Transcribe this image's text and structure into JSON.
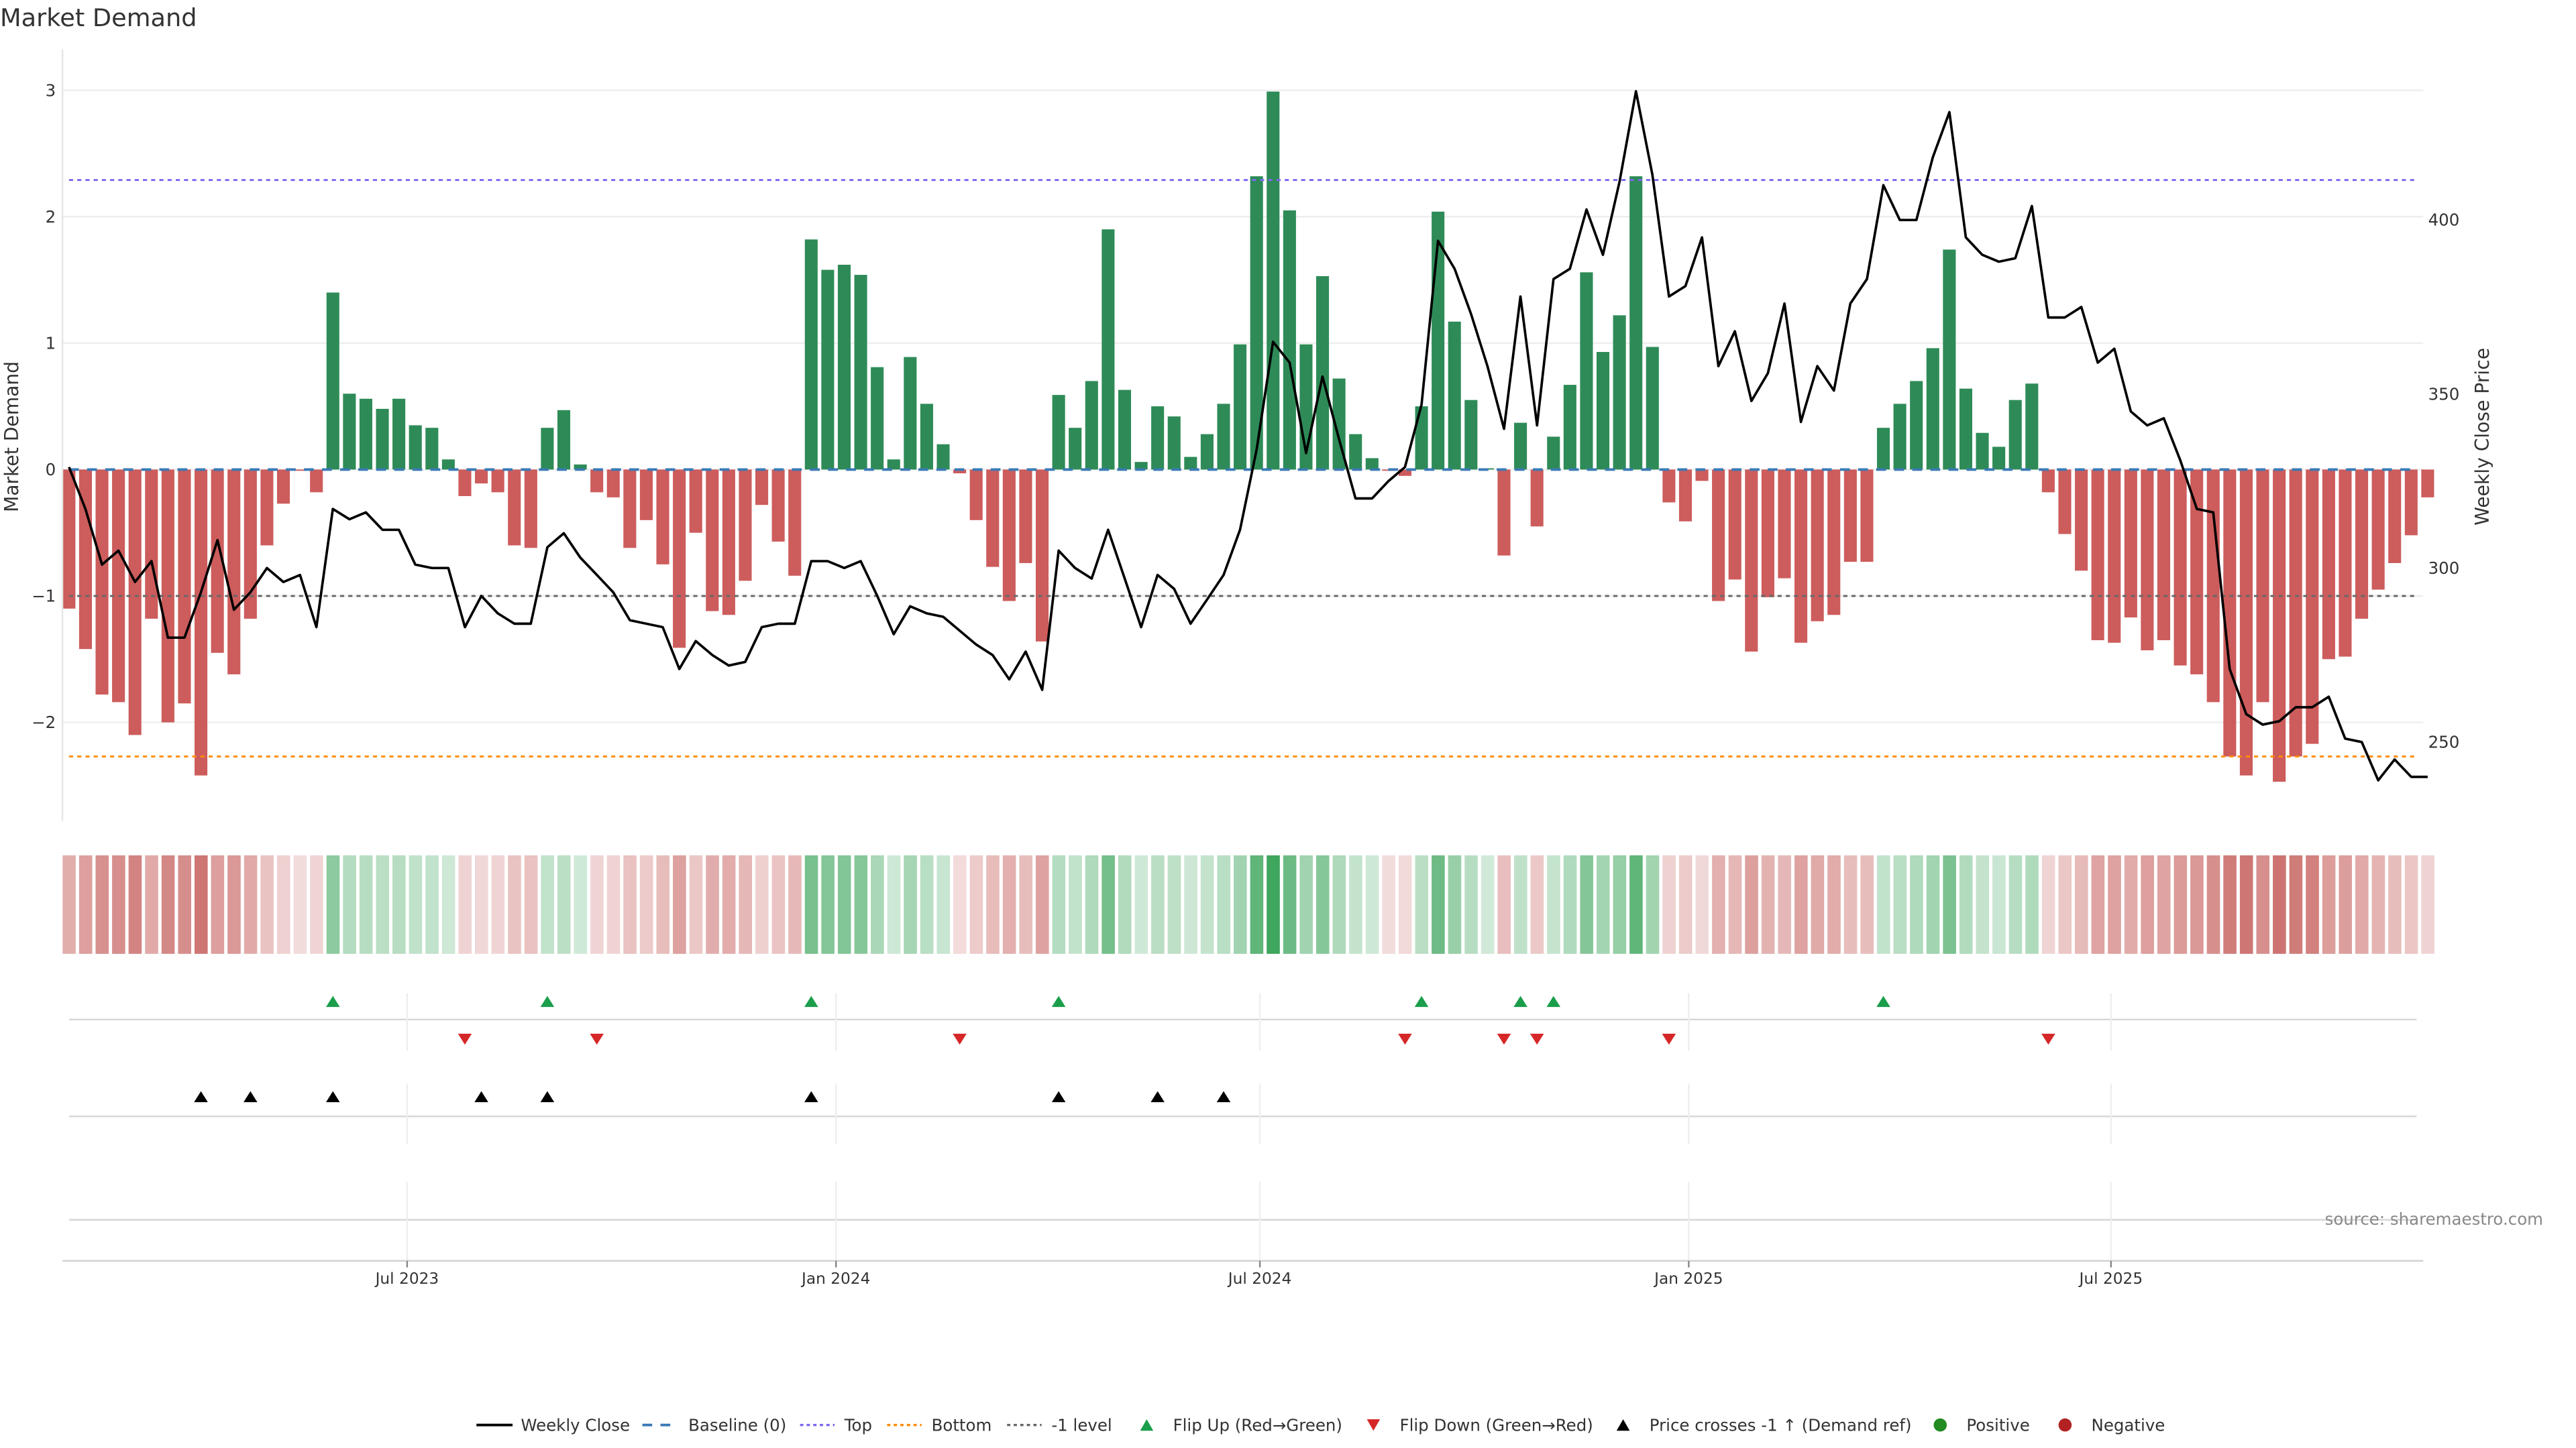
{
  "chart_data": {
    "type": "bar",
    "title": "Market Demand",
    "ylabel": "Market Demand",
    "y2label": "Weekly Close Price",
    "ylim": [
      -2.75,
      3.3
    ],
    "y2lim": [
      226,
      470
    ],
    "yticks": [
      3,
      2,
      1,
      0,
      -1,
      -2
    ],
    "ytick_labels": [
      "3",
      "2",
      "1",
      "0",
      "−1",
      "−2"
    ],
    "y2ticks": [
      400,
      350,
      300,
      250
    ],
    "y2tick_labels": [
      "400",
      "350",
      "300",
      "250"
    ],
    "x_unit": "week index",
    "xticks": [
      {
        "pos": 20.5,
        "label": "Jul 2023"
      },
      {
        "pos": 46.5,
        "label": "Jan 2024"
      },
      {
        "pos": 72.2,
        "label": "Jul 2024"
      },
      {
        "pos": 98.2,
        "label": "Jan 2025"
      },
      {
        "pos": 123.8,
        "label": "Jul 2025"
      }
    ],
    "grid": true,
    "legend_position": "bottom-center",
    "reference_lines": {
      "top": 2.29,
      "bottom": -2.27,
      "minus_one": -1.0,
      "baseline": 0
    },
    "demand": [
      -1.1,
      -1.42,
      -1.78,
      -1.84,
      -2.1,
      -1.18,
      -2.0,
      -1.85,
      -2.42,
      -1.45,
      -1.62,
      -1.18,
      -0.6,
      -0.27,
      -0.01,
      -0.18,
      1.4,
      0.6,
      0.56,
      0.48,
      0.56,
      0.35,
      0.33,
      0.08,
      -0.21,
      -0.11,
      -0.18,
      -0.6,
      -0.62,
      0.33,
      0.47,
      0.04,
      -0.18,
      -0.22,
      -0.62,
      -0.4,
      -0.75,
      -1.41,
      -0.5,
      -1.12,
      -1.15,
      -0.88,
      -0.28,
      -0.57,
      -0.84,
      1.82,
      1.58,
      1.62,
      1.54,
      0.81,
      0.08,
      0.89,
      0.52,
      0.2,
      -0.03,
      -0.4,
      -0.77,
      -1.04,
      -0.74,
      -1.36,
      0.59,
      0.33,
      0.7,
      1.9,
      0.63,
      0.06,
      0.5,
      0.42,
      0.1,
      0.28,
      0.52,
      0.99,
      2.32,
      2.99,
      2.05,
      0.99,
      1.53,
      0.72,
      0.28,
      0.09,
      -0.01,
      -0.05,
      0.5,
      2.04,
      1.17,
      0.55,
      0.01,
      -0.68,
      0.37,
      -0.45,
      0.26,
      0.67,
      1.56,
      0.93,
      1.22,
      2.32,
      0.97,
      -0.26,
      -0.41,
      -0.09,
      -1.04,
      -0.87,
      -1.44,
      -1.01,
      -0.86,
      -1.37,
      -1.2,
      -1.15,
      -0.73,
      -0.73,
      0.33,
      0.52,
      0.7,
      0.96,
      1.74,
      0.64,
      0.29,
      0.18,
      0.55,
      0.68,
      -0.18,
      -0.51,
      -0.8,
      -1.35,
      -1.37,
      -1.17,
      -1.43,
      -1.35,
      -1.55,
      -1.62,
      -1.84,
      -2.27,
      -2.42,
      -1.84,
      -2.47,
      -2.27,
      -2.17,
      -1.5,
      -1.48,
      -1.18,
      -0.95,
      -0.74,
      -0.52,
      -0.22
    ],
    "weekly_close": [
      329,
      317,
      301,
      305,
      296,
      302,
      280,
      280,
      293,
      308,
      288,
      293,
      300,
      296,
      298,
      283,
      317,
      314,
      316,
      311,
      311,
      301,
      300,
      300,
      283,
      292,
      287,
      284,
      284,
      306,
      310,
      303,
      298,
      293,
      285,
      284,
      283,
      271,
      279,
      275,
      272,
      273,
      283,
      284,
      284,
      302,
      302,
      300,
      302,
      292,
      281,
      289,
      287,
      286,
      282,
      278,
      275,
      268,
      276,
      265,
      305,
      300,
      297,
      311,
      297,
      283,
      298,
      294,
      284,
      291,
      298,
      311,
      334,
      365,
      359,
      333,
      355,
      337,
      320,
      320,
      325,
      329,
      347,
      394,
      386,
      373,
      358,
      340,
      378,
      341,
      383,
      386,
      403,
      390,
      411,
      437,
      413,
      378,
      381,
      395,
      358,
      368,
      348,
      356,
      376,
      342,
      358,
      351,
      376,
      383,
      410,
      400,
      400,
      418,
      431,
      395,
      390,
      388,
      389,
      404,
      372,
      372,
      375,
      359,
      363,
      345,
      341,
      343,
      331,
      317,
      316,
      271,
      258,
      255,
      256,
      260,
      260,
      263,
      251,
      250,
      239,
      245,
      240,
      240
    ],
    "flip_up_weeks": [
      16,
      29,
      45,
      60,
      82,
      88,
      90,
      110
    ],
    "flip_down_weeks": [
      24,
      32,
      54,
      81,
      87,
      89,
      97,
      120
    ],
    "price_cross_weeks": [
      8,
      11,
      16,
      25,
      29,
      45,
      60,
      66,
      70
    ],
    "legend": [
      {
        "label": "Weekly Close",
        "kind": "line",
        "color": "#000000"
      },
      {
        "label": "Baseline (0)",
        "kind": "dash",
        "color": "#3a7ab5"
      },
      {
        "label": "Top",
        "kind": "dot",
        "color": "#7b68ee"
      },
      {
        "label": "Bottom",
        "kind": "dot",
        "color": "#ff8c00"
      },
      {
        "label": "-1 level",
        "kind": "dot",
        "color": "#696969"
      },
      {
        "label": "Flip Up (Red→Green)",
        "kind": "tri-up",
        "color": "#1a9e4a"
      },
      {
        "label": "Flip Down (Green→Red)",
        "kind": "tri-down",
        "color": "#d62728"
      },
      {
        "label": "Price crosses -1 ↑ (Demand ref)",
        "kind": "tri-up",
        "color": "#000000"
      },
      {
        "label": "Positive",
        "kind": "dot-marker",
        "color": "#228b22"
      },
      {
        "label": "Negative",
        "kind": "dot-marker",
        "color": "#b22222"
      }
    ],
    "colors": {
      "positive_bar": "#2e8b57",
      "negative_bar": "#cd5c5c",
      "heat_pos": "#2e9e4f",
      "heat_neg": "#c0504d"
    }
  },
  "source": "source: sharemaestro.com"
}
